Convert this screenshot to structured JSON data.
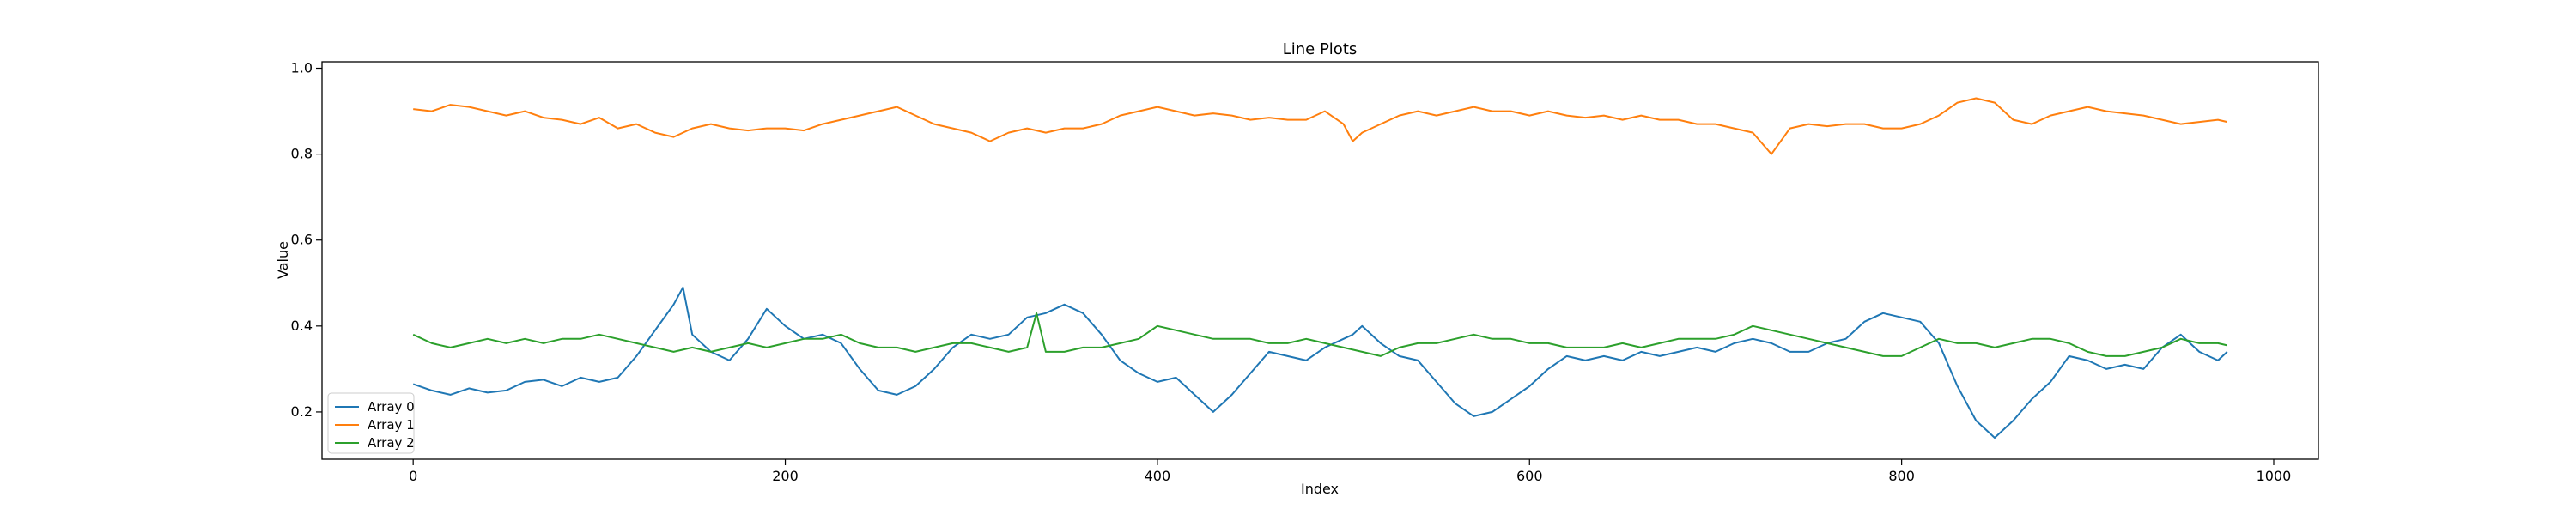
{
  "chart_data": {
    "type": "line",
    "title": "Line Plots",
    "xlabel": "Index",
    "ylabel": "Value",
    "xlim": [
      -49,
      1024
    ],
    "ylim": [
      0.09,
      1.015
    ],
    "xticks": [
      0,
      200,
      400,
      600,
      800,
      1000
    ],
    "yticks": [
      0.2,
      0.4,
      0.6,
      0.8,
      1.0
    ],
    "xtick_labels": [
      "0",
      "200",
      "400",
      "600",
      "800",
      "1000"
    ],
    "ytick_labels": [
      "0.2",
      "0.4",
      "0.6",
      "0.8",
      "1.0"
    ],
    "grid": false,
    "legend_position": "lower-left",
    "series": [
      {
        "name": "Array 0",
        "color": "#1f77b4",
        "points": [
          [
            0,
            0.265
          ],
          [
            10,
            0.25
          ],
          [
            20,
            0.24
          ],
          [
            30,
            0.255
          ],
          [
            40,
            0.245
          ],
          [
            50,
            0.25
          ],
          [
            60,
            0.27
          ],
          [
            70,
            0.275
          ],
          [
            80,
            0.26
          ],
          [
            90,
            0.28
          ],
          [
            100,
            0.27
          ],
          [
            110,
            0.28
          ],
          [
            120,
            0.33
          ],
          [
            130,
            0.39
          ],
          [
            140,
            0.45
          ],
          [
            145,
            0.49
          ],
          [
            150,
            0.38
          ],
          [
            160,
            0.34
          ],
          [
            170,
            0.32
          ],
          [
            180,
            0.37
          ],
          [
            190,
            0.44
          ],
          [
            200,
            0.4
          ],
          [
            210,
            0.37
          ],
          [
            220,
            0.38
          ],
          [
            230,
            0.36
          ],
          [
            240,
            0.3
          ],
          [
            250,
            0.25
          ],
          [
            260,
            0.24
          ],
          [
            270,
            0.26
          ],
          [
            280,
            0.3
          ],
          [
            290,
            0.35
          ],
          [
            300,
            0.38
          ],
          [
            310,
            0.37
          ],
          [
            320,
            0.38
          ],
          [
            330,
            0.42
          ],
          [
            340,
            0.43
          ],
          [
            350,
            0.45
          ],
          [
            360,
            0.43
          ],
          [
            370,
            0.38
          ],
          [
            380,
            0.32
          ],
          [
            390,
            0.29
          ],
          [
            400,
            0.27
          ],
          [
            410,
            0.28
          ],
          [
            420,
            0.24
          ],
          [
            430,
            0.2
          ],
          [
            440,
            0.24
          ],
          [
            450,
            0.29
          ],
          [
            460,
            0.34
          ],
          [
            470,
            0.33
          ],
          [
            480,
            0.32
          ],
          [
            490,
            0.35
          ],
          [
            500,
            0.37
          ],
          [
            505,
            0.38
          ],
          [
            510,
            0.4
          ],
          [
            520,
            0.36
          ],
          [
            530,
            0.33
          ],
          [
            540,
            0.32
          ],
          [
            550,
            0.27
          ],
          [
            560,
            0.22
          ],
          [
            570,
            0.19
          ],
          [
            580,
            0.2
          ],
          [
            590,
            0.23
          ],
          [
            600,
            0.26
          ],
          [
            610,
            0.3
          ],
          [
            620,
            0.33
          ],
          [
            630,
            0.32
          ],
          [
            640,
            0.33
          ],
          [
            650,
            0.32
          ],
          [
            660,
            0.34
          ],
          [
            670,
            0.33
          ],
          [
            680,
            0.34
          ],
          [
            690,
            0.35
          ],
          [
            700,
            0.34
          ],
          [
            710,
            0.36
          ],
          [
            720,
            0.37
          ],
          [
            730,
            0.36
          ],
          [
            740,
            0.34
          ],
          [
            750,
            0.34
          ],
          [
            760,
            0.36
          ],
          [
            770,
            0.37
          ],
          [
            780,
            0.41
          ],
          [
            790,
            0.43
          ],
          [
            800,
            0.42
          ],
          [
            810,
            0.41
          ],
          [
            820,
            0.36
          ],
          [
            830,
            0.26
          ],
          [
            840,
            0.18
          ],
          [
            850,
            0.14
          ],
          [
            860,
            0.18
          ],
          [
            870,
            0.23
          ],
          [
            880,
            0.27
          ],
          [
            890,
            0.33
          ],
          [
            900,
            0.32
          ],
          [
            910,
            0.3
          ],
          [
            920,
            0.31
          ],
          [
            930,
            0.3
          ],
          [
            940,
            0.35
          ],
          [
            950,
            0.38
          ],
          [
            960,
            0.34
          ],
          [
            970,
            0.32
          ],
          [
            975,
            0.34
          ]
        ]
      },
      {
        "name": "Array 1",
        "color": "#ff7f0e",
        "points": [
          [
            0,
            0.905
          ],
          [
            10,
            0.9
          ],
          [
            20,
            0.915
          ],
          [
            30,
            0.91
          ],
          [
            40,
            0.9
          ],
          [
            50,
            0.89
          ],
          [
            60,
            0.9
          ],
          [
            70,
            0.885
          ],
          [
            80,
            0.88
          ],
          [
            90,
            0.87
          ],
          [
            100,
            0.885
          ],
          [
            110,
            0.86
          ],
          [
            120,
            0.87
          ],
          [
            130,
            0.85
          ],
          [
            140,
            0.84
          ],
          [
            150,
            0.86
          ],
          [
            160,
            0.87
          ],
          [
            170,
            0.86
          ],
          [
            180,
            0.855
          ],
          [
            190,
            0.86
          ],
          [
            200,
            0.86
          ],
          [
            210,
            0.855
          ],
          [
            220,
            0.87
          ],
          [
            230,
            0.88
          ],
          [
            240,
            0.89
          ],
          [
            250,
            0.9
          ],
          [
            260,
            0.91
          ],
          [
            270,
            0.89
          ],
          [
            280,
            0.87
          ],
          [
            290,
            0.86
          ],
          [
            300,
            0.85
          ],
          [
            310,
            0.83
          ],
          [
            320,
            0.85
          ],
          [
            330,
            0.86
          ],
          [
            340,
            0.85
          ],
          [
            350,
            0.86
          ],
          [
            360,
            0.86
          ],
          [
            370,
            0.87
          ],
          [
            380,
            0.89
          ],
          [
            390,
            0.9
          ],
          [
            400,
            0.91
          ],
          [
            410,
            0.9
          ],
          [
            420,
            0.89
          ],
          [
            430,
            0.895
          ],
          [
            440,
            0.89
          ],
          [
            450,
            0.88
          ],
          [
            460,
            0.885
          ],
          [
            470,
            0.88
          ],
          [
            480,
            0.88
          ],
          [
            490,
            0.9
          ],
          [
            500,
            0.87
          ],
          [
            505,
            0.83
          ],
          [
            510,
            0.85
          ],
          [
            520,
            0.87
          ],
          [
            530,
            0.89
          ],
          [
            540,
            0.9
          ],
          [
            550,
            0.89
          ],
          [
            560,
            0.9
          ],
          [
            570,
            0.91
          ],
          [
            580,
            0.9
          ],
          [
            590,
            0.9
          ],
          [
            600,
            0.89
          ],
          [
            610,
            0.9
          ],
          [
            620,
            0.89
          ],
          [
            630,
            0.885
          ],
          [
            640,
            0.89
          ],
          [
            650,
            0.88
          ],
          [
            660,
            0.89
          ],
          [
            670,
            0.88
          ],
          [
            680,
            0.88
          ],
          [
            690,
            0.87
          ],
          [
            700,
            0.87
          ],
          [
            710,
            0.86
          ],
          [
            720,
            0.85
          ],
          [
            730,
            0.8
          ],
          [
            740,
            0.86
          ],
          [
            750,
            0.87
          ],
          [
            760,
            0.865
          ],
          [
            770,
            0.87
          ],
          [
            780,
            0.87
          ],
          [
            790,
            0.86
          ],
          [
            800,
            0.86
          ],
          [
            810,
            0.87
          ],
          [
            820,
            0.89
          ],
          [
            830,
            0.92
          ],
          [
            840,
            0.93
          ],
          [
            850,
            0.92
          ],
          [
            860,
            0.88
          ],
          [
            870,
            0.87
          ],
          [
            880,
            0.89
          ],
          [
            890,
            0.9
          ],
          [
            900,
            0.91
          ],
          [
            910,
            0.9
          ],
          [
            920,
            0.895
          ],
          [
            930,
            0.89
          ],
          [
            940,
            0.88
          ],
          [
            950,
            0.87
          ],
          [
            960,
            0.875
          ],
          [
            970,
            0.88
          ],
          [
            975,
            0.875
          ]
        ]
      },
      {
        "name": "Array 2",
        "color": "#2ca02c",
        "points": [
          [
            0,
            0.38
          ],
          [
            10,
            0.36
          ],
          [
            20,
            0.35
          ],
          [
            30,
            0.36
          ],
          [
            40,
            0.37
          ],
          [
            50,
            0.36
          ],
          [
            60,
            0.37
          ],
          [
            70,
            0.36
          ],
          [
            80,
            0.37
          ],
          [
            90,
            0.37
          ],
          [
            100,
            0.38
          ],
          [
            110,
            0.37
          ],
          [
            120,
            0.36
          ],
          [
            130,
            0.35
          ],
          [
            140,
            0.34
          ],
          [
            150,
            0.35
          ],
          [
            160,
            0.34
          ],
          [
            170,
            0.35
          ],
          [
            180,
            0.36
          ],
          [
            190,
            0.35
          ],
          [
            200,
            0.36
          ],
          [
            210,
            0.37
          ],
          [
            220,
            0.37
          ],
          [
            230,
            0.38
          ],
          [
            240,
            0.36
          ],
          [
            250,
            0.35
          ],
          [
            260,
            0.35
          ],
          [
            270,
            0.34
          ],
          [
            280,
            0.35
          ],
          [
            290,
            0.36
          ],
          [
            300,
            0.36
          ],
          [
            310,
            0.35
          ],
          [
            320,
            0.34
          ],
          [
            330,
            0.35
          ],
          [
            335,
            0.43
          ],
          [
            340,
            0.34
          ],
          [
            350,
            0.34
          ],
          [
            360,
            0.35
          ],
          [
            370,
            0.35
          ],
          [
            380,
            0.36
          ],
          [
            390,
            0.37
          ],
          [
            400,
            0.4
          ],
          [
            410,
            0.39
          ],
          [
            420,
            0.38
          ],
          [
            430,
            0.37
          ],
          [
            440,
            0.37
          ],
          [
            450,
            0.37
          ],
          [
            460,
            0.36
          ],
          [
            470,
            0.36
          ],
          [
            480,
            0.37
          ],
          [
            490,
            0.36
          ],
          [
            500,
            0.35
          ],
          [
            510,
            0.34
          ],
          [
            520,
            0.33
          ],
          [
            530,
            0.35
          ],
          [
            540,
            0.36
          ],
          [
            550,
            0.36
          ],
          [
            560,
            0.37
          ],
          [
            570,
            0.38
          ],
          [
            580,
            0.37
          ],
          [
            590,
            0.37
          ],
          [
            600,
            0.36
          ],
          [
            610,
            0.36
          ],
          [
            620,
            0.35
          ],
          [
            630,
            0.35
          ],
          [
            640,
            0.35
          ],
          [
            650,
            0.36
          ],
          [
            660,
            0.35
          ],
          [
            670,
            0.36
          ],
          [
            680,
            0.37
          ],
          [
            690,
            0.37
          ],
          [
            700,
            0.37
          ],
          [
            710,
            0.38
          ],
          [
            720,
            0.4
          ],
          [
            730,
            0.39
          ],
          [
            740,
            0.38
          ],
          [
            750,
            0.37
          ],
          [
            760,
            0.36
          ],
          [
            770,
            0.35
          ],
          [
            780,
            0.34
          ],
          [
            790,
            0.33
          ],
          [
            800,
            0.33
          ],
          [
            810,
            0.35
          ],
          [
            820,
            0.37
          ],
          [
            830,
            0.36
          ],
          [
            840,
            0.36
          ],
          [
            850,
            0.35
          ],
          [
            860,
            0.36
          ],
          [
            870,
            0.37
          ],
          [
            880,
            0.37
          ],
          [
            890,
            0.36
          ],
          [
            900,
            0.34
          ],
          [
            910,
            0.33
          ],
          [
            920,
            0.33
          ],
          [
            930,
            0.34
          ],
          [
            940,
            0.35
          ],
          [
            950,
            0.37
          ],
          [
            960,
            0.36
          ],
          [
            970,
            0.36
          ],
          [
            975,
            0.355
          ]
        ]
      }
    ]
  }
}
